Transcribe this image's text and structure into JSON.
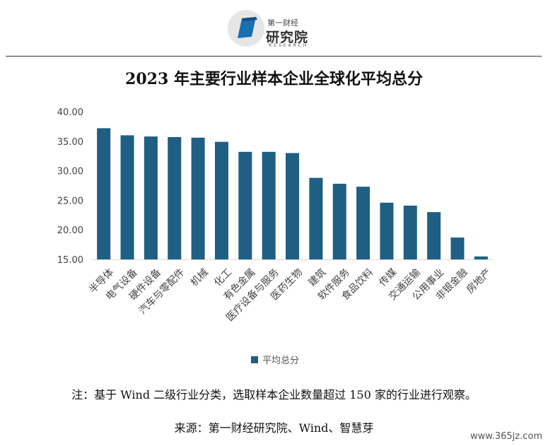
{
  "brand": {
    "small": "第一财经",
    "name": "研究院",
    "sub": "RESEARCH"
  },
  "chart_data": {
    "type": "bar",
    "title": "2023 年主要行业样本企业全球化平均总分",
    "categories": [
      "半导体",
      "电气设备",
      "硬件设备",
      "汽车与零配件",
      "机械",
      "化工",
      "有色金属",
      "医疗设备与服务",
      "医药生物",
      "建筑",
      "软件服务",
      "食品饮料",
      "传媒",
      "交通运输",
      "公用事业",
      "非银金融",
      "房地产"
    ],
    "series": [
      {
        "name": "平均总分",
        "values": [
          37.2,
          36.0,
          35.8,
          35.7,
          35.6,
          34.9,
          33.2,
          33.2,
          33.0,
          28.8,
          27.8,
          27.3,
          24.6,
          24.1,
          23.0,
          18.7,
          15.5
        ]
      }
    ],
    "yticks": [
      "40.00",
      "35.00",
      "30.00",
      "25.00",
      "20.00",
      "15.00"
    ],
    "ylim": [
      15,
      40
    ],
    "color": "#1f5f83",
    "grid": false,
    "legend": "bottom"
  },
  "note": "注：基于 Wind 二级行业分类，选取样本企业数量超过 150 家的行业进行观察。",
  "source": "来源：第一财经研究院、Wind、智慧芽",
  "watermark": "www.365jz.com"
}
